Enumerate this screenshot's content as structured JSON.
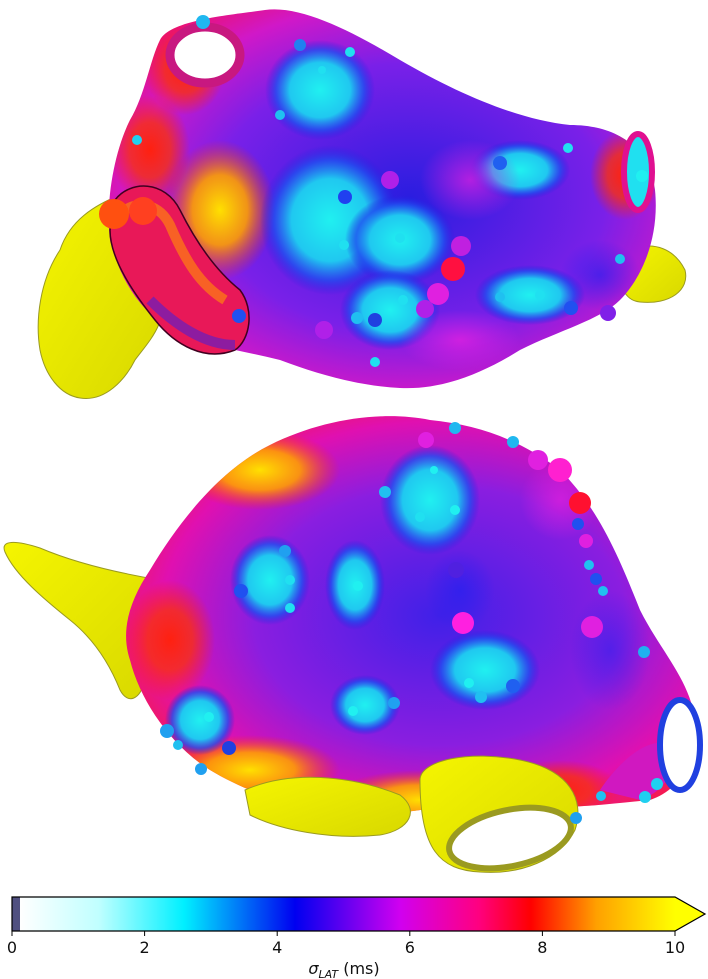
{
  "figure": {
    "views": [
      "upper-anatomy",
      "lower-anatomy"
    ],
    "colormap_colors": [
      "#ffffff",
      "#00ffff",
      "#0000ff",
      "#ff00ff",
      "#ff0000",
      "#ffa500",
      "#ffff00"
    ]
  },
  "colorbar": {
    "min": 0,
    "max": 10,
    "ticks": [
      {
        "value": 0,
        "label": "0"
      },
      {
        "value": 2,
        "label": "2"
      },
      {
        "value": 4,
        "label": "4"
      },
      {
        "value": 6,
        "label": "6"
      },
      {
        "value": 8,
        "label": "8"
      },
      {
        "value": 10,
        "label": "10"
      }
    ],
    "label_symbol": "σ",
    "label_subscript": "LAT",
    "label_unit": " (ms)",
    "extend": "max"
  }
}
